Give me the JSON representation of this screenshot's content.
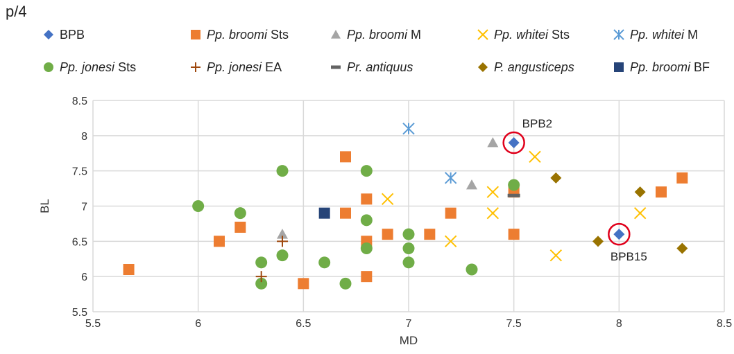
{
  "corner_label": "p/4",
  "colors": {
    "BPB": "#4472C4",
    "broomi_sts": "#ED7D31",
    "broomi_m": "#A5A5A5",
    "whitei_sts": "#FFC000",
    "whitei_m": "#5B9BD5",
    "jonesi_sts": "#70AD47",
    "jonesi_ea": "#9E480E",
    "antiquus": "#636363",
    "angusticeps": "#997300",
    "broomi_bf": "#264478",
    "grid": "#d9d9d9",
    "highlight_circle": "#E0001B"
  },
  "legend": {
    "row1": [
      {
        "key": "BPB",
        "marker": "diamond",
        "prefix": "",
        "italic": "",
        "suffix": "BPB"
      },
      {
        "key": "broomi_sts",
        "marker": "square",
        "prefix": "",
        "italic": "Pp. broomi",
        "suffix": " Sts"
      },
      {
        "key": "broomi_m",
        "marker": "triangle",
        "prefix": "",
        "italic": "Pp. broomi",
        "suffix": " M"
      },
      {
        "key": "whitei_sts",
        "marker": "x",
        "prefix": "",
        "italic": "Pp. whitei",
        "suffix": " Sts"
      },
      {
        "key": "whitei_m",
        "marker": "asterisk",
        "prefix": "",
        "italic": "Pp. whitei",
        "suffix": " M"
      }
    ],
    "row2": [
      {
        "key": "jonesi_sts",
        "marker": "circle",
        "prefix": "",
        "italic": "Pp. jonesi",
        "suffix": " Sts"
      },
      {
        "key": "jonesi_ea",
        "marker": "plus",
        "prefix": "",
        "italic": "Pp. jonesi",
        "suffix": " EA"
      },
      {
        "key": "antiquus",
        "marker": "dash",
        "prefix": "",
        "italic": "Pr. antiquus",
        "suffix": ""
      },
      {
        "key": "angusticeps",
        "marker": "diamond",
        "prefix": "",
        "italic": "P. angusticeps",
        "suffix": ""
      },
      {
        "key": "broomi_bf",
        "marker": "square",
        "prefix": "",
        "italic": "Pp. broomi",
        "suffix": " BF"
      }
    ]
  },
  "chart_data": {
    "type": "scatter",
    "xlabel": "MD",
    "ylabel": "BL",
    "xlim": [
      5.5,
      8.5
    ],
    "ylim": [
      5.5,
      8.5
    ],
    "xticks": [
      "5.5",
      "6",
      "6.5",
      "7",
      "7.5",
      "8",
      "8.5"
    ],
    "yticks": [
      "5.5",
      "6",
      "6.5",
      "7",
      "7.5",
      "8",
      "8.5"
    ],
    "grid": true,
    "legend_position": "top",
    "series": [
      {
        "name": "BPB",
        "key": "BPB",
        "marker": "diamond",
        "points": [
          [
            7.5,
            7.9
          ],
          [
            8.0,
            6.6
          ]
        ]
      },
      {
        "name": "Pp. broomi Sts",
        "key": "broomi_sts",
        "marker": "square",
        "points": [
          [
            5.67,
            6.1
          ],
          [
            6.1,
            6.5
          ],
          [
            6.2,
            6.7
          ],
          [
            6.5,
            5.9
          ],
          [
            6.7,
            7.7
          ],
          [
            6.7,
            6.9
          ],
          [
            6.8,
            7.1
          ],
          [
            6.8,
            6.5
          ],
          [
            6.8,
            6.0
          ],
          [
            6.9,
            6.6
          ],
          [
            7.1,
            6.6
          ],
          [
            7.2,
            6.9
          ],
          [
            7.5,
            7.2
          ],
          [
            7.5,
            6.6
          ],
          [
            8.2,
            7.2
          ],
          [
            8.3,
            7.4
          ]
        ]
      },
      {
        "name": "Pp. broomi M",
        "key": "broomi_m",
        "marker": "triangle",
        "points": [
          [
            6.4,
            6.6
          ],
          [
            7.3,
            7.3
          ],
          [
            7.4,
            7.9
          ]
        ]
      },
      {
        "name": "Pp. whitei Sts",
        "key": "whitei_sts",
        "marker": "x",
        "points": [
          [
            6.9,
            7.1
          ],
          [
            7.2,
            6.5
          ],
          [
            7.4,
            7.2
          ],
          [
            7.4,
            6.9
          ],
          [
            7.6,
            7.7
          ],
          [
            7.7,
            6.3
          ],
          [
            8.1,
            6.9
          ]
        ]
      },
      {
        "name": "Pp. whitei M",
        "key": "whitei_m",
        "marker": "asterisk",
        "points": [
          [
            7.0,
            8.1
          ],
          [
            7.2,
            7.4
          ]
        ]
      },
      {
        "name": "Pp. jonesi Sts",
        "key": "jonesi_sts",
        "marker": "circle",
        "points": [
          [
            6.0,
            7.0
          ],
          [
            6.2,
            6.9
          ],
          [
            6.3,
            6.2
          ],
          [
            6.3,
            5.9
          ],
          [
            6.4,
            7.5
          ],
          [
            6.4,
            6.3
          ],
          [
            6.6,
            6.2
          ],
          [
            6.7,
            5.9
          ],
          [
            6.8,
            7.5
          ],
          [
            6.8,
            6.8
          ],
          [
            6.8,
            6.4
          ],
          [
            7.0,
            6.6
          ],
          [
            7.0,
            6.4
          ],
          [
            7.0,
            6.2
          ],
          [
            7.3,
            6.1
          ],
          [
            7.5,
            7.3
          ]
        ]
      },
      {
        "name": "Pp. jonesi EA",
        "key": "jonesi_ea",
        "marker": "plus",
        "points": [
          [
            6.3,
            6.0
          ],
          [
            6.4,
            6.5
          ]
        ]
      },
      {
        "name": "Pr. antiquus",
        "key": "antiquus",
        "marker": "dash",
        "points": [
          [
            7.5,
            7.15
          ]
        ]
      },
      {
        "name": "P. angusticeps",
        "key": "angusticeps",
        "marker": "diamond",
        "points": [
          [
            7.7,
            7.4
          ],
          [
            7.9,
            6.5
          ],
          [
            8.1,
            7.2
          ],
          [
            8.3,
            6.4
          ]
        ]
      },
      {
        "name": "Pp. broomi BF",
        "key": "broomi_bf",
        "marker": "square",
        "points": [
          [
            6.6,
            6.9
          ]
        ]
      }
    ],
    "annotations": [
      {
        "label": "BPB2",
        "x": 7.5,
        "y": 7.9,
        "anchor": "above-right",
        "circled": true
      },
      {
        "label": "BPB15",
        "x": 8.0,
        "y": 6.6,
        "anchor": "below",
        "circled": true
      }
    ]
  }
}
